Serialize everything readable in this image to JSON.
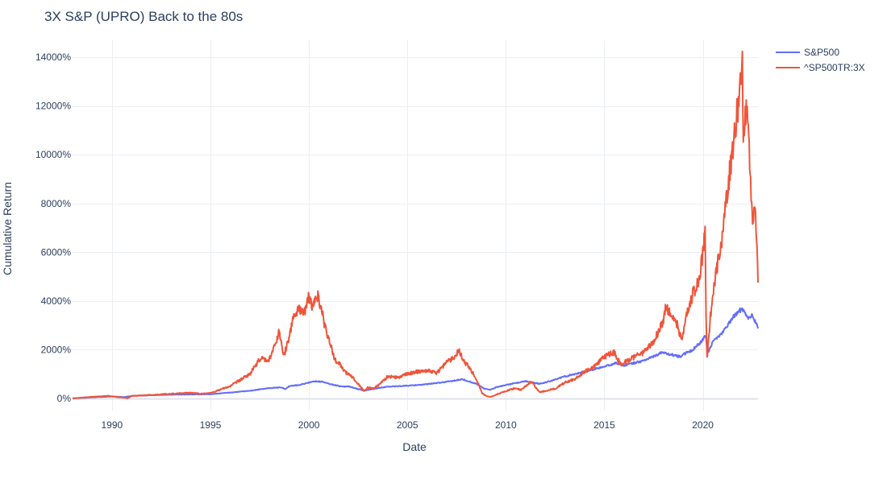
{
  "chart_data": {
    "type": "line",
    "title": "3X S&P (UPRO) Back to the 80s",
    "xlabel": "Date",
    "ylabel": "Cumulative Return",
    "xlim": [
      1988.0,
      2022.8
    ],
    "ylim": [
      -500,
      14700
    ],
    "x_ticks": [
      1990,
      1995,
      2000,
      2005,
      2010,
      2015,
      2020
    ],
    "x_tick_labels": [
      "1990",
      "1995",
      "2000",
      "2005",
      "2010",
      "2015",
      "2020"
    ],
    "y_ticks": [
      0,
      2000,
      4000,
      6000,
      8000,
      10000,
      12000,
      14000
    ],
    "y_tick_labels": [
      "0%",
      "2000%",
      "4000%",
      "6000%",
      "8000%",
      "10000%",
      "12000%",
      "14000%"
    ],
    "grid": true,
    "legend_position": "top-right",
    "series": [
      {
        "name": "S&P500",
        "color": "#636efa",
        "x": [
          1988.0,
          1989.0,
          1990.0,
          1990.6,
          1991.0,
          1992.0,
          1993.0,
          1994.0,
          1995.0,
          1996.0,
          1997.0,
          1997.6,
          1998.0,
          1998.6,
          1998.8,
          1999.0,
          1999.5,
          2000.0,
          2000.3,
          2000.7,
          2001.0,
          2001.7,
          2002.0,
          2002.5,
          2002.8,
          2003.0,
          2003.5,
          2004.0,
          2005.0,
          2006.0,
          2007.0,
          2007.8,
          2008.5,
          2008.9,
          2009.2,
          2009.5,
          2010.0,
          2011.0,
          2011.7,
          2012.0,
          2013.0,
          2014.0,
          2015.0,
          2015.6,
          2016.0,
          2016.5,
          2017.0,
          2018.0,
          2018.1,
          2018.9,
          2019.0,
          2019.5,
          2020.0,
          2020.15,
          2020.22,
          2020.5,
          2021.0,
          2021.5,
          2022.0,
          2022.3,
          2022.5,
          2022.7,
          2022.8
        ],
        "y": [
          0,
          40,
          80,
          50,
          100,
          130,
          150,
          160,
          170,
          240,
          310,
          380,
          420,
          450,
          380,
          500,
          550,
          650,
          700,
          680,
          600,
          480,
          500,
          380,
          320,
          350,
          420,
          480,
          520,
          580,
          680,
          780,
          600,
          400,
          350,
          450,
          550,
          700,
          600,
          650,
          900,
          1100,
          1300,
          1450,
          1350,
          1450,
          1550,
          1900,
          1850,
          1700,
          1800,
          2000,
          2400,
          2600,
          1800,
          2300,
          2700,
          3300,
          3700,
          3300,
          3400,
          3100,
          2900
        ]
      },
      {
        "name": "^SP500TR:3X",
        "color": "#ef553b",
        "x": [
          1988.0,
          1989.0,
          1989.8,
          1990.0,
          1990.6,
          1990.8,
          1991.0,
          1992.0,
          1993.0,
          1994.0,
          1994.5,
          1995.0,
          1996.0,
          1997.0,
          1997.6,
          1997.9,
          1998.2,
          1998.5,
          1998.7,
          1998.9,
          1999.2,
          1999.5,
          1999.8,
          2000.0,
          2000.2,
          2000.4,
          2000.6,
          2000.8,
          2001.0,
          2001.3,
          2001.6,
          2001.8,
          2002.0,
          2002.3,
          2002.6,
          2002.8,
          2003.0,
          2003.3,
          2003.6,
          2004.0,
          2004.5,
          2005.0,
          2005.5,
          2006.0,
          2006.5,
          2007.0,
          2007.4,
          2007.6,
          2007.9,
          2008.2,
          2008.5,
          2008.8,
          2009.0,
          2009.2,
          2009.5,
          2010.0,
          2010.4,
          2010.8,
          2011.0,
          2011.3,
          2011.7,
          2012.0,
          2012.5,
          2013.0,
          2013.5,
          2014.0,
          2014.5,
          2015.0,
          2015.5,
          2015.8,
          2016.1,
          2016.5,
          2017.0,
          2017.5,
          2018.0,
          2018.1,
          2018.3,
          2018.7,
          2018.95,
          2019.2,
          2019.5,
          2019.8,
          2020.0,
          2020.12,
          2020.18,
          2020.22,
          2020.4,
          2020.7,
          2021.0,
          2021.2,
          2021.5,
          2021.7,
          2021.85,
          2022.0,
          2022.05,
          2022.2,
          2022.35,
          2022.45,
          2022.55,
          2022.65,
          2022.75,
          2022.8
        ],
        "y": [
          0,
          60,
          100,
          80,
          30,
          10,
          100,
          140,
          190,
          230,
          190,
          220,
          500,
          1000,
          1700,
          1500,
          2000,
          2800,
          1700,
          2200,
          3300,
          3700,
          3500,
          4200,
          3700,
          4300,
          3800,
          3000,
          2500,
          1600,
          1400,
          1100,
          1000,
          800,
          500,
          300,
          450,
          400,
          600,
          900,
          850,
          1000,
          1100,
          1150,
          1050,
          1500,
          1700,
          2000,
          1500,
          1200,
          800,
          200,
          100,
          60,
          150,
          300,
          400,
          350,
          500,
          700,
          250,
          300,
          400,
          650,
          800,
          1100,
          1300,
          1700,
          1900,
          1400,
          1500,
          1700,
          1900,
          2300,
          3200,
          3800,
          3500,
          3000,
          2400,
          3500,
          4300,
          4800,
          6000,
          6700,
          2500,
          1700,
          3500,
          5300,
          6700,
          8300,
          10000,
          11500,
          12500,
          13800,
          11000,
          12000,
          10500,
          8500,
          7000,
          8000,
          6200,
          5000
        ]
      }
    ]
  }
}
